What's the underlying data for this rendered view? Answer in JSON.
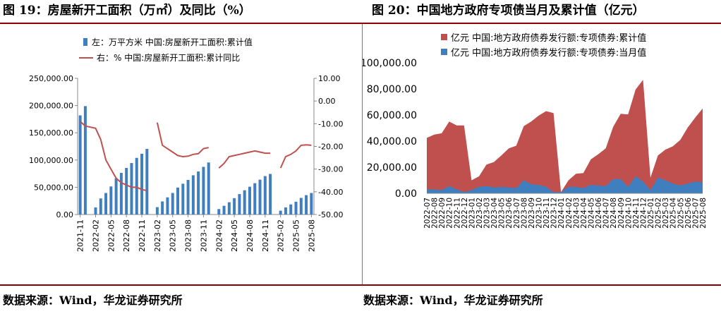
{
  "figures": [
    {
      "title": "图 19：房屋新开工面积（万㎡）及同比（%）",
      "source": "数据来源：Wind，华龙证券研究所"
    },
    {
      "title": "图 20：中国地方政府专项债当月及累计值（亿元）",
      "source": "数据来源：Wind，华龙证券研究所"
    }
  ],
  "chart_data": [
    {
      "type": "bar",
      "x": [
        "2021-11",
        "2021-12",
        "2022-01",
        "2022-02",
        "2022-03",
        "2022-04",
        "2022-05",
        "2022-06",
        "2022-07",
        "2022-08",
        "2022-09",
        "2022-10",
        "2022-11",
        "2022-12",
        "2023-01",
        "2023-02",
        "2023-03",
        "2023-04",
        "2023-05",
        "2023-06",
        "2023-07",
        "2023-08",
        "2023-09",
        "2023-10",
        "2023-11",
        "2023-12",
        "2024-01",
        "2024-02",
        "2024-03",
        "2024-04",
        "2024-05",
        "2024-06",
        "2024-07",
        "2024-08",
        "2024-09",
        "2024-10",
        "2024-11",
        "2024-12",
        "2025-01",
        "2025-02",
        "2025-03",
        "2025-04",
        "2025-05",
        "2025-06",
        "2025-07",
        "2025-08"
      ],
      "xticks": [
        "2021-11",
        "2022-02",
        "2022-05",
        "2022-08",
        "2022-11",
        "2023-02",
        "2023-05",
        "2023-08",
        "2023-11",
        "2024-02",
        "2024-05",
        "2024-08",
        "2024-11",
        "2025-02",
        "2025-05",
        "2025-08"
      ],
      "series": [
        {
          "name": "左：万平方米 中国:房屋新开工面积:累计值",
          "axis": "left",
          "kind": "bar",
          "color": "#3f7fc0",
          "values": [
            182000,
            199000,
            null,
            13000,
            29500,
            39500,
            51500,
            66500,
            76500,
            85500,
            94500,
            104000,
            111500,
            120500,
            null,
            13500,
            24000,
            31500,
            39500,
            49500,
            56500,
            63500,
            72000,
            79000,
            87500,
            95500,
            null,
            10000,
            16000,
            22500,
            30000,
            37500,
            44500,
            51000,
            57500,
            64000,
            70500,
            74500,
            null,
            7000,
            13000,
            18500,
            23500,
            30500,
            35500,
            39500
          ]
        },
        {
          "name": "右：% 中国:房屋新开工面积:累计同比",
          "axis": "right",
          "kind": "line",
          "color": "#c0504d",
          "values": [
            -9,
            -11,
            -11.5,
            -12,
            -17,
            -26,
            -30,
            -34,
            -36,
            -37,
            -38,
            -38,
            -39,
            -39.5,
            null,
            -9.5,
            -19.5,
            -21,
            -22.5,
            -24,
            -24.5,
            -24.3,
            -23.5,
            -23.2,
            -21,
            -20.5,
            null,
            -29.5,
            -27.5,
            -24.5,
            -24,
            -23.5,
            -23,
            -22.5,
            -22,
            -22.5,
            -23,
            -23,
            null,
            -29.5,
            -24.5,
            -23.5,
            -22,
            -19.5,
            -19.3,
            -19.5
          ]
        }
      ],
      "y_left": {
        "min": 0,
        "max": 250000,
        "ticks": [
          "0.00",
          "50,000.00",
          "100,000.00",
          "150,000.00",
          "200,000.00",
          "250,000.00"
        ]
      },
      "y_right": {
        "min": -50,
        "max": 10,
        "ticks": [
          "-50.00",
          "-40.00",
          "-30.00",
          "-20.00",
          "-10.00",
          "0.00",
          "10.00"
        ]
      },
      "legend_position": "top"
    },
    {
      "type": "area",
      "x": [
        "2022-07",
        "2022-08",
        "2022-09",
        "2022-10",
        "2022-11",
        "2022-12",
        "2023-01",
        "2023-02",
        "2023-03",
        "2023-04",
        "2023-05",
        "2023-06",
        "2023-07",
        "2023-08",
        "2023-09",
        "2023-10",
        "2023-11",
        "2023-12",
        "2024-01",
        "2024-02",
        "2024-03",
        "2024-04",
        "2024-05",
        "2024-06",
        "2024-07",
        "2024-08",
        "2024-09",
        "2024-10",
        "2024-11",
        "2024-12",
        "2025-01",
        "2025-02",
        "2025-03",
        "2025-04",
        "2025-05",
        "2025-06",
        "2025-07",
        "2025-08"
      ],
      "series": [
        {
          "name": "亿元 中国:地方政府债券发行额:专项债券:累计值",
          "color": "#c0504d",
          "values": [
            42500,
            45000,
            46000,
            55000,
            52000,
            52000,
            10000,
            13000,
            22000,
            24000,
            29000,
            34500,
            36500,
            51500,
            55000,
            59500,
            63000,
            61500,
            1000,
            10000,
            15000,
            15500,
            26000,
            30000,
            34500,
            51000,
            61000,
            60500,
            79500,
            87000,
            12000,
            29000,
            33500,
            36000,
            41000,
            50500,
            58000,
            65000
          ]
        },
        {
          "name": "亿元 中国:地方政府债券发行额:专项债券:当月值",
          "color": "#3f7fc0",
          "values": [
            3000,
            3000,
            2500,
            5500,
            3000,
            1000,
            2500,
            5000,
            5500,
            4500,
            5000,
            4500,
            4000,
            10000,
            7000,
            6500,
            5000,
            1000,
            1000,
            5000,
            5000,
            4000,
            6500,
            6000,
            5500,
            11000,
            11000,
            5000,
            13000,
            9000,
            2500,
            12000,
            10000,
            7500,
            6000,
            7500,
            9000,
            8500
          ]
        }
      ],
      "y": {
        "min": 0,
        "max": 100000,
        "ticks": [
          "0.00",
          "20,000.00",
          "40,000.00",
          "60,000.00",
          "80,000.00",
          "100,000.00"
        ]
      },
      "legend_position": "top"
    }
  ]
}
